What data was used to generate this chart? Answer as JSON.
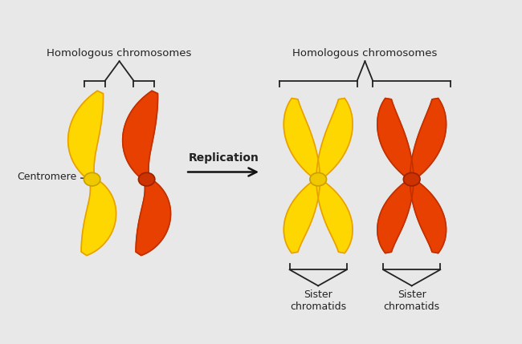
{
  "bg_color": "#e8e8e8",
  "yellow_fill": "#FFD700",
  "yellow_outline": "#E8A000",
  "orange_fill": "#E84000",
  "orange_outline": "#C03000",
  "centromere_yellow_fill": "#F0C800",
  "centromere_yellow_outline": "#C8A000",
  "centromere_orange_fill": "#CC3300",
  "centromere_orange_outline": "#992200",
  "text_color": "#222222",
  "arrow_color": "#111111",
  "label_left": "Homologous chromosomes",
  "label_right": "Homologous chromosomes",
  "replication_label": "Replication",
  "centromere_label": "Centromere",
  "sister_label_1": "Sister\nchromatids",
  "sister_label_2": "Sister\nchromatids"
}
